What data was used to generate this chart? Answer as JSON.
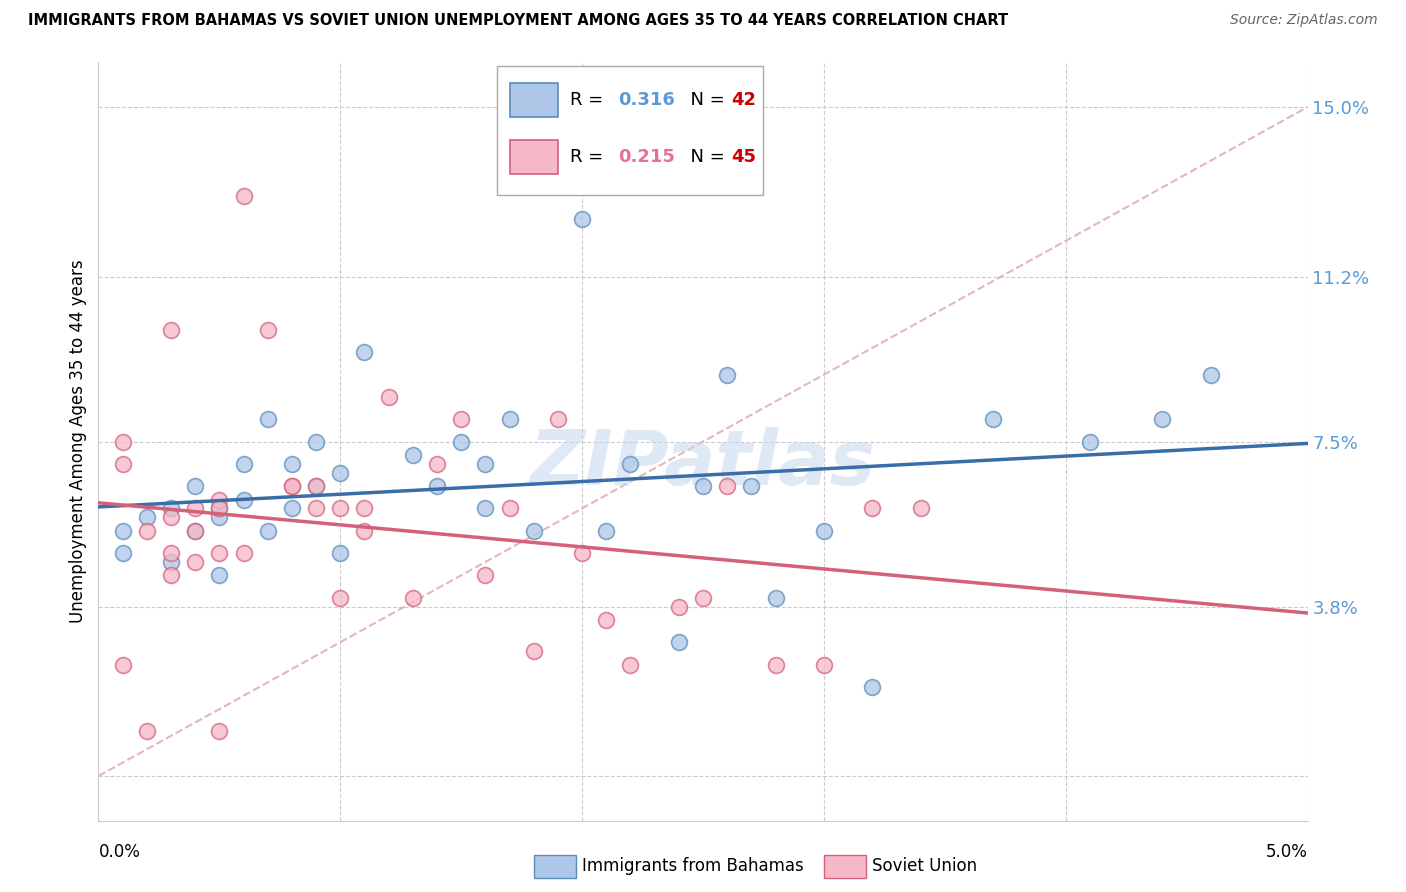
{
  "title": "IMMIGRANTS FROM BAHAMAS VS SOVIET UNION UNEMPLOYMENT AMONG AGES 35 TO 44 YEARS CORRELATION CHART",
  "source": "Source: ZipAtlas.com",
  "ylabel": "Unemployment Among Ages 35 to 44 years",
  "yticks": [
    0.0,
    0.038,
    0.075,
    0.112,
    0.15
  ],
  "ytick_labels": [
    "",
    "3.8%",
    "7.5%",
    "11.2%",
    "15.0%"
  ],
  "xlim": [
    0.0,
    0.05
  ],
  "ylim": [
    -0.01,
    0.16
  ],
  "legend_r1": "0.316",
  "legend_n1": "42",
  "legend_r2": "0.215",
  "legend_n2": "45",
  "bahamas_color": "#aec6e8",
  "soviet_color": "#f4b8c8",
  "bahamas_edge": "#5b8db8",
  "soviet_edge": "#d4607a",
  "trendline_bahamas": "#3a6ea8",
  "trendline_soviet": "#d4607a",
  "diagonal_color": "#e0b0b0",
  "r_color_blue": "#5b9bd5",
  "r_color_pink": "#e87090",
  "n_color": "#cc0000",
  "watermark": "ZIPatlas",
  "bahamas_x": [
    0.001,
    0.001,
    0.002,
    0.003,
    0.003,
    0.004,
    0.004,
    0.005,
    0.005,
    0.005,
    0.006,
    0.006,
    0.007,
    0.007,
    0.008,
    0.008,
    0.009,
    0.009,
    0.01,
    0.01,
    0.011,
    0.013,
    0.014,
    0.015,
    0.016,
    0.016,
    0.017,
    0.018,
    0.02,
    0.021,
    0.022,
    0.024,
    0.025,
    0.026,
    0.027,
    0.028,
    0.03,
    0.032,
    0.037,
    0.041,
    0.044,
    0.046
  ],
  "bahamas_y": [
    0.055,
    0.05,
    0.058,
    0.048,
    0.06,
    0.065,
    0.055,
    0.058,
    0.06,
    0.045,
    0.062,
    0.07,
    0.055,
    0.08,
    0.06,
    0.07,
    0.075,
    0.065,
    0.068,
    0.05,
    0.095,
    0.072,
    0.065,
    0.075,
    0.07,
    0.06,
    0.08,
    0.055,
    0.125,
    0.055,
    0.07,
    0.03,
    0.065,
    0.09,
    0.065,
    0.04,
    0.055,
    0.02,
    0.08,
    0.075,
    0.08,
    0.09
  ],
  "soviet_x": [
    0.001,
    0.001,
    0.002,
    0.002,
    0.003,
    0.003,
    0.003,
    0.004,
    0.004,
    0.004,
    0.005,
    0.005,
    0.005,
    0.005,
    0.006,
    0.006,
    0.007,
    0.008,
    0.008,
    0.009,
    0.009,
    0.01,
    0.01,
    0.011,
    0.011,
    0.012,
    0.013,
    0.014,
    0.015,
    0.016,
    0.017,
    0.018,
    0.019,
    0.02,
    0.021,
    0.022,
    0.024,
    0.025,
    0.026,
    0.028,
    0.03,
    0.032,
    0.034,
    0.001,
    0.003
  ],
  "soviet_y": [
    0.07,
    0.025,
    0.055,
    0.01,
    0.05,
    0.058,
    0.045,
    0.055,
    0.048,
    0.06,
    0.062,
    0.06,
    0.05,
    0.01,
    0.13,
    0.05,
    0.1,
    0.065,
    0.065,
    0.06,
    0.065,
    0.06,
    0.04,
    0.06,
    0.055,
    0.085,
    0.04,
    0.07,
    0.08,
    0.045,
    0.06,
    0.028,
    0.08,
    0.05,
    0.035,
    0.025,
    0.038,
    0.04,
    0.065,
    0.025,
    0.025,
    0.06,
    0.06,
    0.075,
    0.1
  ]
}
